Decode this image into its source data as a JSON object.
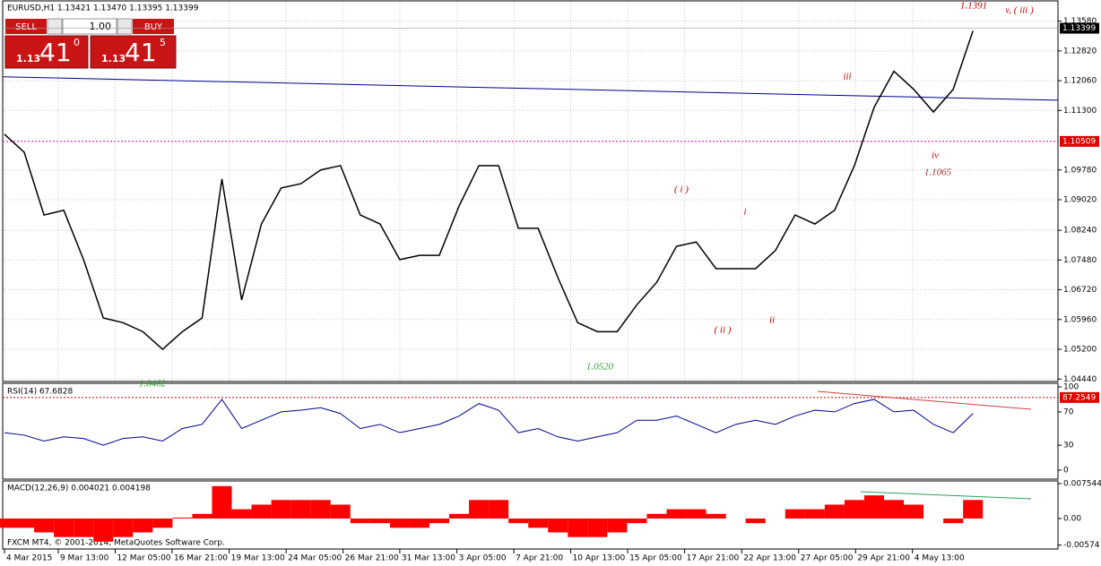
{
  "header": "EURUSD,H1  1.13421 1.13470 1.13395 1.13399",
  "trade_panel": {
    "sell": "SELL",
    "lot": "1.00",
    "buy": "BUY",
    "sell_big": "1.13",
    "sell_pips": "41",
    "sell_frac": "0",
    "buy_big": "1.13",
    "buy_pips": "41",
    "buy_frac": "5"
  },
  "chart_data": {
    "type": "line",
    "grid": true,
    "x": [
      0,
      1,
      2,
      3,
      4,
      5,
      6,
      7,
      8,
      9,
      10,
      11,
      12,
      13,
      14,
      15,
      16,
      17,
      18,
      19,
      20,
      21,
      22,
      23,
      24,
      25,
      26,
      27,
      28,
      29,
      30,
      31,
      32,
      33,
      34,
      35,
      36,
      37,
      38,
      39,
      40,
      41,
      42,
      43,
      44,
      45,
      46,
      47,
      48,
      49
    ],
    "xlim": [
      0,
      53.3
    ],
    "xticks": [
      {
        "value": 0,
        "label": "4 Mar 2015"
      },
      {
        "value": 2.72,
        "label": "9 Mar 13:00"
      },
      {
        "value": 5.6,
        "label": "12 Mar 05:00"
      },
      {
        "value": 8.48,
        "label": "16 Mar 21:00"
      },
      {
        "value": 11.37,
        "label": "19 Mar 13:00"
      },
      {
        "value": 14.25,
        "label": "24 Mar 05:00"
      },
      {
        "value": 17.13,
        "label": "26 Mar 21:00"
      },
      {
        "value": 20.0,
        "label": "31 Mar 13:00"
      },
      {
        "value": 22.89,
        "label": "3 Apr 05:00"
      },
      {
        "value": 25.77,
        "label": "7 Apr 21:00"
      },
      {
        "value": 28.65,
        "label": "10 Apr 13:00"
      },
      {
        "value": 31.53,
        "label": "15 Apr 05:00"
      },
      {
        "value": 34.41,
        "label": "17 Apr 21:00"
      },
      {
        "value": 37.3,
        "label": "22 Apr 13:00"
      },
      {
        "value": 40.18,
        "label": "27 Apr 05:00"
      },
      {
        "value": 43.06,
        "label": "29 Apr 21:00"
      },
      {
        "value": 45.94,
        "label": "4 May 13:00"
      }
    ],
    "ylim": [
      1.044,
      1.1412
    ],
    "yticks": [
      {
        "value": 1.1358,
        "label": "1.13580"
      },
      {
        "value": 1.1282,
        "label": "1.12820"
      },
      {
        "value": 1.1206,
        "label": "1.12060"
      },
      {
        "value": 1.113,
        "label": "1.11300"
      },
      {
        "value": 1.0978,
        "label": "1.09780"
      },
      {
        "value": 1.0902,
        "label": "1.09020"
      },
      {
        "value": 1.0824,
        "label": "1.08240"
      },
      {
        "value": 1.0748,
        "label": "1.07480"
      },
      {
        "value": 1.0672,
        "label": "1.06720"
      },
      {
        "value": 1.0596,
        "label": "1.05960"
      },
      {
        "value": 1.052,
        "label": "1.05200"
      },
      {
        "value": 1.0444,
        "label": "1.04440"
      }
    ],
    "series": [
      {
        "color": "#000000",
        "values": [
          1.1069,
          1.1023,
          1.0863,
          1.0875,
          1.0749,
          1.06,
          1.0588,
          1.0565,
          1.052,
          1.0565,
          1.06,
          1.0955,
          1.0646,
          1.084,
          1.0932,
          1.0943,
          1.0978,
          1.0989,
          1.0863,
          1.084,
          1.0749,
          1.076,
          1.076,
          1.0886,
          1.0989,
          1.0989,
          1.0829,
          1.0829,
          1.0703,
          1.0588,
          1.0565,
          1.0565,
          1.0634,
          1.0691,
          1.0783,
          1.0794,
          1.0726,
          1.0726,
          1.0726,
          1.0772,
          1.0863,
          1.084,
          1.0875,
          1.0989,
          1.1138,
          1.123,
          1.1184,
          1.1126,
          1.1184,
          1.1333
        ]
      }
    ],
    "current_price": 1.13399,
    "level": 1.10509,
    "trendline": {
      "color": "#00008b",
      "values": [
        1.1216,
        1.1156
      ]
    },
    "annotations": [
      {
        "text": "1.1391",
        "color": "#c00000"
      },
      {
        "text": "v,  ( iii )",
        "color": "#c00000"
      },
      {
        "text": "iii",
        "color": "#c00000"
      },
      {
        "text": "iv",
        "color": "#c00000"
      },
      {
        "text": "1.1065",
        "color": "#a03030"
      },
      {
        "text": "( i )",
        "color": "#c00000"
      },
      {
        "text": "i",
        "color": "#c00000"
      },
      {
        "text": "( ii )",
        "color": "#c00000"
      },
      {
        "text": "ii",
        "color": "#c00000"
      },
      {
        "text": "1.0520",
        "color": "#2e9e2e"
      },
      {
        "text": "1.0462",
        "color": "#2e9e2e"
      }
    ],
    "footer": "FXCM MT4, © 2001-2014, MetaQuotes Software Corp."
  },
  "indicators": {
    "rsi": {
      "title": "RSI(14) 67.6828",
      "color": "#00008b",
      "ylim": [
        0,
        100
      ],
      "yticks": [
        100,
        70,
        30,
        0
      ],
      "level": 87.2549,
      "values": [
        45,
        42,
        35,
        40,
        38,
        30,
        38,
        40,
        35,
        50,
        55,
        85,
        50,
        60,
        70,
        72,
        75,
        68,
        50,
        55,
        45,
        50,
        55,
        65,
        80,
        72,
        45,
        50,
        40,
        35,
        40,
        45,
        60,
        60,
        65,
        55,
        45,
        55,
        60,
        55,
        65,
        72,
        70,
        80,
        85,
        70,
        72,
        55,
        45,
        68
      ]
    },
    "macd": {
      "title": "MACD(12,26,9) 0.004021 0.004198",
      "color": "#ff0000",
      "ylim": [
        -0.00658,
        0.00812
      ],
      "yticks": [
        0.007544,
        {
          "value": 0,
          "label": "0.00"
        },
        -0.00574
      ],
      "values": [
        -0.002,
        -0.002,
        -0.003,
        -0.004,
        -0.004,
        -0.005,
        -0.004,
        -0.003,
        -0.002,
        0.0002,
        0.001,
        0.007,
        0.002,
        0.003,
        0.004,
        0.004,
        0.004,
        0.003,
        -0.001,
        -0.001,
        -0.002,
        -0.002,
        -0.001,
        0.001,
        0.004,
        0.004,
        -0.001,
        -0.002,
        -0.003,
        -0.004,
        -0.004,
        -0.003,
        -0.001,
        0.001,
        0.002,
        0.002,
        0.001,
        0,
        -0.001,
        0,
        0.002,
        0.002,
        0.003,
        0.004,
        0.005,
        0.004,
        0.003,
        0,
        -0.001,
        0.004
      ]
    }
  }
}
